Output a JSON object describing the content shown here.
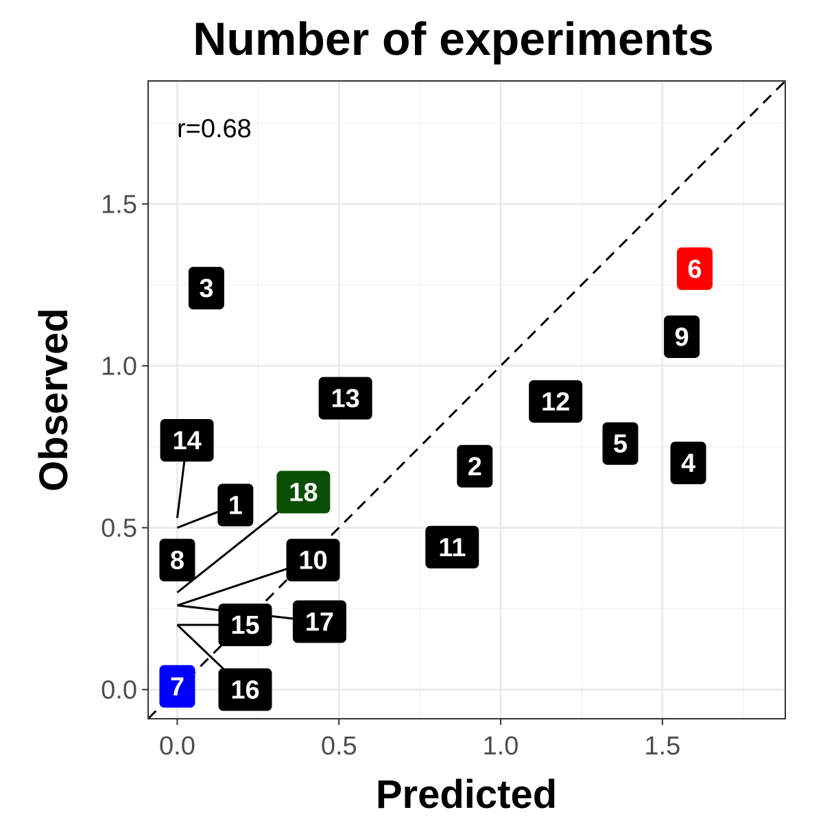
{
  "chart_data": {
    "type": "scatter",
    "title": "Number of experiments",
    "xlabel": "Predicted",
    "ylabel": "Observed",
    "xlim": [
      -0.09,
      1.88
    ],
    "ylim": [
      -0.09,
      1.88
    ],
    "x_ticks": [
      0.0,
      0.5,
      1.0,
      1.5
    ],
    "x_tick_labels": [
      "0.0",
      "0.5",
      "1.0",
      "1.5"
    ],
    "y_ticks": [
      0.0,
      0.5,
      1.0,
      1.5
    ],
    "y_tick_labels": [
      "0.0",
      "0.5",
      "1.0",
      "1.5"
    ],
    "grid": true,
    "reference_line": "y = x",
    "annotation": "r=0.68",
    "colors": {
      "default": "#000000",
      "6": "#ff0000",
      "7": "#0000ff",
      "18": "#0a4f05"
    },
    "points": [
      {
        "label": "1",
        "x": 0.0,
        "y": 0.5,
        "label_x": 0.18,
        "label_y": 0.57,
        "color": "#000000"
      },
      {
        "label": "2",
        "x": 0.92,
        "y": 0.69,
        "label_x": 0.92,
        "label_y": 0.69,
        "color": "#000000"
      },
      {
        "label": "3",
        "x": 0.09,
        "y": 1.24,
        "label_x": 0.09,
        "label_y": 1.24,
        "color": "#000000"
      },
      {
        "label": "4",
        "x": 1.58,
        "y": 0.7,
        "label_x": 1.58,
        "label_y": 0.7,
        "color": "#000000"
      },
      {
        "label": "5",
        "x": 1.37,
        "y": 0.76,
        "label_x": 1.37,
        "label_y": 0.76,
        "color": "#000000"
      },
      {
        "label": "6",
        "x": 1.6,
        "y": 1.3,
        "label_x": 1.6,
        "label_y": 1.3,
        "color": "#ff0000"
      },
      {
        "label": "7",
        "x": 0.0,
        "y": 0.01,
        "label_x": 0.0,
        "label_y": 0.01,
        "color": "#0000ff"
      },
      {
        "label": "8",
        "x": 0.0,
        "y": 0.4,
        "label_x": 0.0,
        "label_y": 0.4,
        "color": "#000000"
      },
      {
        "label": "9",
        "x": 1.56,
        "y": 1.09,
        "label_x": 1.56,
        "label_y": 1.09,
        "color": "#000000"
      },
      {
        "label": "10",
        "x": 0.0,
        "y": 0.26,
        "label_x": 0.42,
        "label_y": 0.4,
        "color": "#000000"
      },
      {
        "label": "11",
        "x": 0.85,
        "y": 0.44,
        "label_x": 0.85,
        "label_y": 0.44,
        "color": "#000000"
      },
      {
        "label": "12",
        "x": 1.17,
        "y": 0.89,
        "label_x": 1.17,
        "label_y": 0.89,
        "color": "#000000"
      },
      {
        "label": "13",
        "x": 0.52,
        "y": 0.9,
        "label_x": 0.52,
        "label_y": 0.9,
        "color": "#000000"
      },
      {
        "label": "14",
        "x": 0.0,
        "y": 0.53,
        "label_x": 0.03,
        "label_y": 0.77,
        "color": "#000000"
      },
      {
        "label": "15",
        "x": 0.0,
        "y": 0.2,
        "label_x": 0.21,
        "label_y": 0.2,
        "color": "#000000"
      },
      {
        "label": "16",
        "x": 0.0,
        "y": 0.2,
        "label_x": 0.21,
        "label_y": 0.0,
        "color": "#000000"
      },
      {
        "label": "17",
        "x": 0.0,
        "y": 0.26,
        "label_x": 0.44,
        "label_y": 0.21,
        "color": "#000000"
      },
      {
        "label": "18",
        "x": 0.0,
        "y": 0.3,
        "label_x": 0.39,
        "label_y": 0.61,
        "color": "#0a4f05"
      }
    ]
  }
}
